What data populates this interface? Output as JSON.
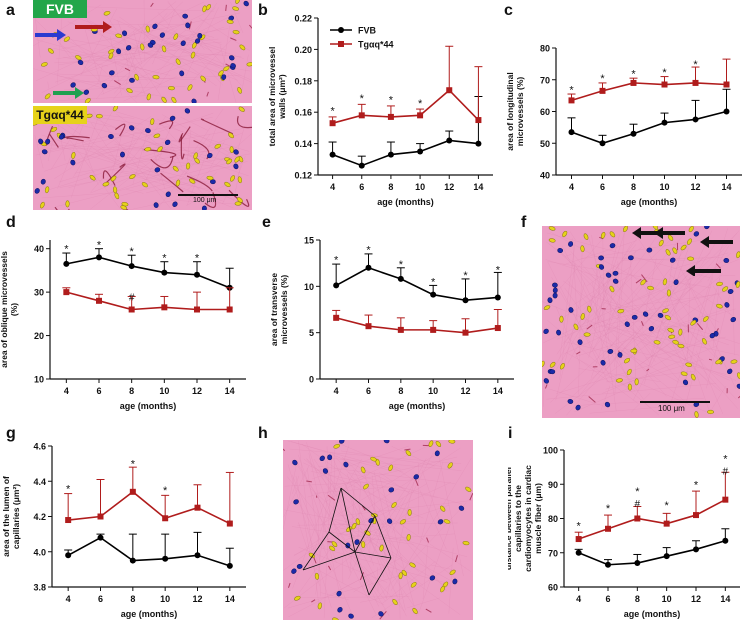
{
  "panels": {
    "a": "a",
    "b": "b",
    "c": "c",
    "d": "d",
    "e": "e",
    "f": "f",
    "g": "g",
    "h": "h",
    "i": "i"
  },
  "micro_a": {
    "label_top": "FVB",
    "label_bottom": "Tgαq*44",
    "scalebar": "100 μm"
  },
  "micro_f": {
    "scalebar": "100 μm"
  },
  "colors": {
    "fvb": "#000000",
    "tg": "#b01c1c",
    "tissue": "#ec9fc4",
    "nucleus": "#1b2aa8",
    "erythro": "#e6d21a",
    "label_green": "#22a64a"
  },
  "chart_data": [
    {
      "id": "b",
      "type": "line",
      "title": "",
      "xlabel": "age (months)",
      "ylabel": "total area of microvessel walls (μm²)",
      "x": [
        4,
        6,
        8,
        10,
        12,
        14
      ],
      "ylim": [
        0.12,
        0.22
      ],
      "yticks": [
        0.12,
        0.14,
        0.16,
        0.18,
        0.2,
        0.22
      ],
      "ytick_labels": [
        "0.12",
        "0.14",
        "0.16",
        "0.18",
        "0.20",
        "0.22"
      ],
      "series": [
        {
          "name": "FVB",
          "values": [
            0.133,
            0.126,
            0.133,
            0.135,
            0.142,
            0.14
          ],
          "err": [
            0.008,
            0.006,
            0.008,
            0.005,
            0.006,
            0.03
          ]
        },
        {
          "name": "Tgαq*44",
          "values": [
            0.153,
            0.158,
            0.157,
            0.158,
            0.174,
            0.155
          ],
          "err": [
            0.004,
            0.007,
            0.007,
            0.004,
            0.028,
            0.034
          ]
        }
      ],
      "annotations": [
        {
          "x": 4,
          "y": 0.161,
          "text": "*"
        },
        {
          "x": 6,
          "y": 0.169,
          "text": "*"
        },
        {
          "x": 8,
          "y": 0.168,
          "text": "*"
        },
        {
          "x": 10,
          "y": 0.166,
          "text": "*"
        }
      ],
      "legend": [
        "FVB",
        "Tgαq*44"
      ]
    },
    {
      "id": "c",
      "type": "line",
      "xlabel": "age (months)",
      "ylabel": "area of longitudinal microvessels (%)",
      "x": [
        4,
        6,
        8,
        10,
        12,
        14
      ],
      "ylim": [
        40,
        80
      ],
      "yticks": [
        40,
        50,
        60,
        70,
        80
      ],
      "ytick_labels": [
        "40",
        "50",
        "60",
        "70",
        "80"
      ],
      "series": [
        {
          "name": "FVB",
          "values": [
            53.5,
            50,
            53,
            56.5,
            57.5,
            60
          ],
          "err": [
            4.5,
            2.5,
            3,
            3,
            6,
            7
          ]
        },
        {
          "name": "Tgαq*44",
          "values": [
            63.5,
            66.5,
            69,
            68.5,
            69,
            68.5
          ],
          "err": [
            2,
            2.5,
            1.5,
            2.5,
            5,
            8
          ]
        }
      ],
      "annotations": [
        {
          "x": 4,
          "y": 67,
          "text": "*"
        },
        {
          "x": 6,
          "y": 70.5,
          "text": "*"
        },
        {
          "x": 8,
          "y": 72,
          "text": "*"
        },
        {
          "x": 10,
          "y": 72.5,
          "text": "*"
        },
        {
          "x": 12,
          "y": 75,
          "text": "*"
        }
      ]
    },
    {
      "id": "d",
      "type": "line",
      "xlabel": "age (months)",
      "ylabel": "area of oblique microvessels (%)",
      "x": [
        4,
        6,
        8,
        10,
        12,
        14
      ],
      "ylim": [
        10,
        42
      ],
      "yticks": [
        10,
        20,
        30,
        40
      ],
      "ytick_labels": [
        "10",
        "20",
        "30",
        "40"
      ],
      "series": [
        {
          "name": "FVB",
          "values": [
            36.5,
            38,
            36,
            34.5,
            34,
            31
          ],
          "err": [
            2.5,
            2,
            2.5,
            2.5,
            3,
            4.5
          ]
        },
        {
          "name": "Tgαq*44",
          "values": [
            30,
            28,
            26,
            26.5,
            26,
            26
          ],
          "err": [
            1,
            1.5,
            3,
            2.5,
            4,
            5
          ]
        }
      ],
      "annotations": [
        {
          "x": 4,
          "y": 40,
          "text": "*"
        },
        {
          "x": 6,
          "y": 41,
          "text": "*"
        },
        {
          "x": 8,
          "y": 39.5,
          "text": "*"
        },
        {
          "x": 10,
          "y": 38,
          "text": "*"
        },
        {
          "x": 12,
          "y": 38,
          "text": "*"
        },
        {
          "x": 8,
          "y": 29,
          "text": "#"
        }
      ]
    },
    {
      "id": "e",
      "type": "line",
      "xlabel": "age (months)",
      "ylabel": "area of transverse microvessels (%)",
      "x": [
        4,
        6,
        8,
        10,
        12,
        14
      ],
      "ylim": [
        0,
        15
      ],
      "yticks": [
        0,
        5,
        10,
        15
      ],
      "ytick_labels": [
        "0",
        "5",
        "10",
        "15"
      ],
      "series": [
        {
          "name": "FVB",
          "values": [
            10.1,
            12,
            10.8,
            9.1,
            8.5,
            8.8
          ],
          "err": [
            2.3,
            1.5,
            1.2,
            1,
            2.3,
            2.7
          ]
        },
        {
          "name": "Tgαq*44",
          "values": [
            6.6,
            5.7,
            5.3,
            5.3,
            5,
            5.5
          ],
          "err": [
            0.8,
            1.2,
            1.3,
            1,
            1.5,
            2
          ]
        }
      ],
      "annotations": [
        {
          "x": 4,
          "y": 12.9,
          "text": "*"
        },
        {
          "x": 6,
          "y": 14,
          "text": "*"
        },
        {
          "x": 8,
          "y": 12.4,
          "text": "*"
        },
        {
          "x": 10,
          "y": 10.5,
          "text": "*"
        },
        {
          "x": 12,
          "y": 11.2,
          "text": "*"
        },
        {
          "x": 14,
          "y": 11.8,
          "text": "*"
        }
      ]
    },
    {
      "id": "g",
      "type": "line",
      "xlabel": "age (months)",
      "ylabel": "area of the lumen of capillaries (μm²)",
      "x": [
        4,
        6,
        8,
        10,
        12,
        14
      ],
      "ylim": [
        3.8,
        4.6
      ],
      "yticks": [
        3.8,
        4.0,
        4.2,
        4.4,
        4.6
      ],
      "ytick_labels": [
        "3.8",
        "4.0",
        "4.2",
        "4.4",
        "4.6"
      ],
      "series": [
        {
          "name": "FVB",
          "values": [
            3.98,
            4.08,
            3.95,
            3.96,
            3.98,
            3.92
          ],
          "err": [
            0.03,
            0.02,
            0.15,
            0.14,
            0.13,
            0.1
          ]
        },
        {
          "name": "Tgαq*44",
          "values": [
            4.18,
            4.2,
            4.34,
            4.19,
            4.25,
            4.16
          ],
          "err": [
            0.15,
            0.21,
            0.14,
            0.13,
            0.13,
            0.29
          ]
        }
      ],
      "annotations": [
        {
          "x": 4,
          "y": 4.36,
          "text": "*"
        },
        {
          "x": 8,
          "y": 4.5,
          "text": "*"
        },
        {
          "x": 10,
          "y": 4.35,
          "text": "*"
        }
      ]
    },
    {
      "id": "i",
      "type": "line",
      "xlabel": "age (months)",
      "ylabel": "distance between parallel capillaries to the cardiomyocytes in cardiac muscle fiber (μm)",
      "x": [
        4,
        6,
        8,
        10,
        12,
        14
      ],
      "ylim": [
        60,
        100
      ],
      "yticks": [
        60,
        70,
        80,
        90,
        100
      ],
      "ytick_labels": [
        "60",
        "70",
        "80",
        "90",
        "100"
      ],
      "series": [
        {
          "name": "FVB",
          "values": [
            70,
            66.5,
            67,
            69,
            71,
            73.5
          ],
          "err": [
            1,
            1.5,
            2.5,
            2.5,
            2.5,
            3.5
          ]
        },
        {
          "name": "Tgαq*44",
          "values": [
            74,
            77,
            80,
            78.5,
            81,
            85.5
          ],
          "err": [
            2,
            4,
            3.5,
            3,
            7,
            8
          ]
        }
      ],
      "annotations": [
        {
          "x": 4,
          "y": 78,
          "text": "*"
        },
        {
          "x": 6,
          "y": 83,
          "text": "*"
        },
        {
          "x": 8,
          "y": 88,
          "text": "*"
        },
        {
          "x": 8,
          "y": 84.5,
          "text": "#"
        },
        {
          "x": 10,
          "y": 84,
          "text": "*"
        },
        {
          "x": 12,
          "y": 90,
          "text": "*"
        },
        {
          "x": 14,
          "y": 97.5,
          "text": "*"
        },
        {
          "x": 14,
          "y": 94,
          "text": "#"
        }
      ]
    }
  ]
}
